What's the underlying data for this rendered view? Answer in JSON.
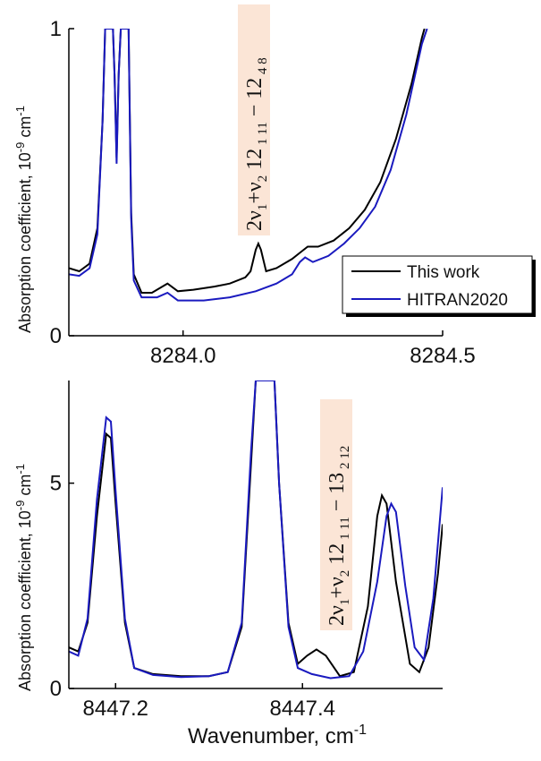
{
  "chart_data": [
    {
      "type": "line",
      "ylabel_main": "Absorption coefficient, 10",
      "ylabel_exp": "-9",
      "ylabel_unit": " cm",
      "ylabel_unit_exp": "-1",
      "xlim": [
        8283.78,
        8284.5
      ],
      "ylim": [
        0,
        1
      ],
      "xticks": [
        8284.0,
        8284.5
      ],
      "xtick_labels": [
        "8284.0",
        "8284.5"
      ],
      "yticks": [
        0,
        1
      ],
      "ytick_labels": [
        "0",
        "1"
      ],
      "annotation": {
        "prefix": "2ν",
        "sub1": "1",
        "mid": "+ν",
        "sub2": "2",
        "upper_j": " 12",
        "upper_ka_kc": " 1 11",
        "dash": " − ",
        "lower_j": "12",
        "lower_ka_kc": " 4 8",
        "at_x": 8284.14
      },
      "legend": {
        "placement": "right",
        "entries": [
          "This work",
          "HITRAN2020"
        ]
      },
      "series": [
        {
          "name": "This work",
          "color": "#000000",
          "points": [
            [
              8283.78,
              0.22
            ],
            [
              8283.8,
              0.21
            ],
            [
              8283.82,
              0.235
            ],
            [
              8283.835,
              0.35
            ],
            [
              8283.845,
              0.7
            ],
            [
              8283.85,
              1.0
            ],
            [
              8283.85,
              1.0
            ],
            [
              8283.865,
              1.0
            ],
            [
              8283.868,
              0.85
            ],
            [
              8283.872,
              0.58
            ],
            [
              8283.876,
              0.85
            ],
            [
              8283.88,
              1.0
            ],
            [
              8283.895,
              1.0
            ],
            [
              8283.9,
              0.4
            ],
            [
              8283.905,
              0.2
            ],
            [
              8283.92,
              0.14
            ],
            [
              8283.94,
              0.14
            ],
            [
              8283.96,
              0.16
            ],
            [
              8283.97,
              0.17
            ],
            [
              8283.99,
              0.145
            ],
            [
              8284.02,
              0.15
            ],
            [
              8284.06,
              0.16
            ],
            [
              8284.09,
              0.17
            ],
            [
              8284.12,
              0.19
            ],
            [
              8284.13,
              0.21
            ],
            [
              8284.14,
              0.28
            ],
            [
              8284.145,
              0.3
            ],
            [
              8284.15,
              0.28
            ],
            [
              8284.16,
              0.21
            ],
            [
              8284.18,
              0.22
            ],
            [
              8284.21,
              0.25
            ],
            [
              8284.225,
              0.27
            ],
            [
              8284.24,
              0.29
            ],
            [
              8284.26,
              0.29
            ],
            [
              8284.29,
              0.31
            ],
            [
              8284.32,
              0.35
            ],
            [
              8284.35,
              0.41
            ],
            [
              8284.38,
              0.5
            ],
            [
              8284.41,
              0.64
            ],
            [
              8284.44,
              0.82
            ],
            [
              8284.46,
              0.97
            ],
            [
              8284.465,
              1.0
            ]
          ]
        },
        {
          "name": "HITRAN2020",
          "color": "#1a1abf",
          "points": [
            [
              8283.78,
              0.2
            ],
            [
              8283.8,
              0.195
            ],
            [
              8283.82,
              0.22
            ],
            [
              8283.835,
              0.33
            ],
            [
              8283.845,
              0.7
            ],
            [
              8283.85,
              1.0
            ],
            [
              8283.865,
              1.0
            ],
            [
              8283.868,
              0.85
            ],
            [
              8283.872,
              0.56
            ],
            [
              8283.876,
              0.85
            ],
            [
              8283.88,
              1.0
            ],
            [
              8283.895,
              1.0
            ],
            [
              8283.9,
              0.38
            ],
            [
              8283.905,
              0.18
            ],
            [
              8283.92,
              0.125
            ],
            [
              8283.95,
              0.125
            ],
            [
              8283.97,
              0.14
            ],
            [
              8283.99,
              0.115
            ],
            [
              8284.04,
              0.115
            ],
            [
              8284.09,
              0.125
            ],
            [
              8284.14,
              0.145
            ],
            [
              8284.18,
              0.17
            ],
            [
              8284.21,
              0.2
            ],
            [
              8284.225,
              0.24
            ],
            [
              8284.235,
              0.255
            ],
            [
              8284.25,
              0.24
            ],
            [
              8284.28,
              0.26
            ],
            [
              8284.31,
              0.3
            ],
            [
              8284.34,
              0.35
            ],
            [
              8284.37,
              0.42
            ],
            [
              8284.4,
              0.54
            ],
            [
              8284.43,
              0.72
            ],
            [
              8284.46,
              0.95
            ],
            [
              8284.47,
              1.0
            ]
          ]
        }
      ]
    },
    {
      "type": "line",
      "xlabel_main": "Wavenumber, cm",
      "xlabel_exp": "-1",
      "ylabel_main": "Absorption coefficient, 10",
      "ylabel_exp": "-9",
      "ylabel_unit": " cm",
      "ylabel_unit_exp": "-1",
      "xlim": [
        8447.15,
        8447.55
      ],
      "ylim": [
        0,
        7.5
      ],
      "xticks": [
        8447.2,
        8447.4
      ],
      "xtick_labels": [
        "8447.2",
        "8447.4"
      ],
      "yticks": [
        0,
        5
      ],
      "ytick_labels": [
        "0",
        "5"
      ],
      "annotation": {
        "prefix": "2ν",
        "sub1": "1",
        "mid": "+ν",
        "sub2": "2",
        "upper_j": " 12",
        "upper_ka_kc": " 1 11",
        "dash": " − ",
        "lower_j": "13",
        "lower_ka_kc": " 2 12",
        "at_x": 8447.43
      },
      "series": [
        {
          "name": "This work",
          "color": "#000000",
          "points": [
            [
              8447.15,
              1.0
            ],
            [
              8447.16,
              0.9
            ],
            [
              8447.17,
              1.6
            ],
            [
              8447.18,
              4.2
            ],
            [
              8447.19,
              6.2
            ],
            [
              8447.195,
              6.1
            ],
            [
              8447.2,
              4.5
            ],
            [
              8447.21,
              1.6
            ],
            [
              8447.22,
              0.5
            ],
            [
              8447.24,
              0.35
            ],
            [
              8447.27,
              0.3
            ],
            [
              8447.3,
              0.3
            ],
            [
              8447.32,
              0.4
            ],
            [
              8447.335,
              1.5
            ],
            [
              8447.345,
              5.5
            ],
            [
              8447.35,
              7.5
            ],
            [
              8447.37,
              7.5
            ],
            [
              8447.375,
              5.0
            ],
            [
              8447.385,
              1.6
            ],
            [
              8447.395,
              0.6
            ],
            [
              8447.405,
              0.8
            ],
            [
              8447.415,
              0.95
            ],
            [
              8447.425,
              0.8
            ],
            [
              8447.44,
              0.3
            ],
            [
              8447.455,
              0.4
            ],
            [
              8447.47,
              2.0
            ],
            [
              8447.48,
              4.2
            ],
            [
              8447.485,
              4.7
            ],
            [
              8447.49,
              4.5
            ],
            [
              8447.5,
              2.6
            ],
            [
              8447.515,
              0.6
            ],
            [
              8447.525,
              0.4
            ],
            [
              8447.535,
              1.0
            ],
            [
              8447.545,
              2.8
            ],
            [
              8447.55,
              4.0
            ]
          ]
        },
        {
          "name": "HITRAN2020",
          "color": "#1a1abf",
          "points": [
            [
              8447.15,
              0.9
            ],
            [
              8447.16,
              0.8
            ],
            [
              8447.17,
              1.7
            ],
            [
              8447.18,
              4.6
            ],
            [
              8447.19,
              6.6
            ],
            [
              8447.195,
              6.5
            ],
            [
              8447.2,
              4.8
            ],
            [
              8447.21,
              1.7
            ],
            [
              8447.22,
              0.5
            ],
            [
              8447.24,
              0.33
            ],
            [
              8447.27,
              0.28
            ],
            [
              8447.3,
              0.3
            ],
            [
              8447.32,
              0.4
            ],
            [
              8447.335,
              1.6
            ],
            [
              8447.345,
              5.8
            ],
            [
              8447.35,
              7.5
            ],
            [
              8447.37,
              7.5
            ],
            [
              8447.375,
              5.0
            ],
            [
              8447.385,
              1.5
            ],
            [
              8447.395,
              0.5
            ],
            [
              8447.41,
              0.35
            ],
            [
              8447.43,
              0.25
            ],
            [
              8447.45,
              0.3
            ],
            [
              8447.465,
              0.9
            ],
            [
              8447.48,
              2.6
            ],
            [
              8447.49,
              4.2
            ],
            [
              8447.495,
              4.5
            ],
            [
              8447.5,
              4.3
            ],
            [
              8447.51,
              2.5
            ],
            [
              8447.52,
              1.0
            ],
            [
              8447.53,
              0.7
            ],
            [
              8447.54,
              2.2
            ],
            [
              8447.55,
              4.9
            ]
          ]
        }
      ]
    }
  ]
}
